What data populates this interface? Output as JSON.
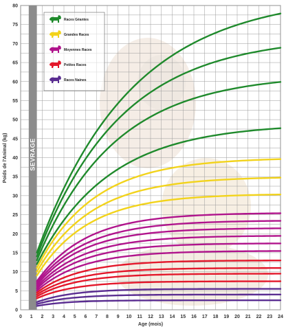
{
  "chart_data": {
    "type": "line",
    "xlabel": "Age (mois)",
    "ylabel": "Poids de l'Animal (kg)",
    "xlim": [
      0,
      24
    ],
    "ylim": [
      0,
      80
    ],
    "x_ticks": [
      "0",
      "1",
      "2",
      "3",
      "4",
      "5",
      "6",
      "7",
      "8",
      "9",
      "10",
      "11",
      "12",
      "13",
      "14",
      "15",
      "16",
      "17",
      "18",
      "19",
      "20",
      "21",
      "22",
      "23",
      "24"
    ],
    "y_ticks": [
      "0",
      "5",
      "10",
      "15",
      "20",
      "25",
      "30",
      "35",
      "40",
      "45",
      "50",
      "55",
      "60",
      "65",
      "70",
      "75",
      "80"
    ],
    "grid": true,
    "sevrage": {
      "label": "SEVRAGE",
      "x_range": [
        0.75,
        1.5
      ]
    },
    "legend_position": "top-left",
    "legend": [
      {
        "label": "Races Géantes",
        "color": "#1f8a2c",
        "icon": "dog-icon"
      },
      {
        "label": "Grandes Races",
        "color": "#f2d31b",
        "icon": "dog-icon"
      },
      {
        "label": "Moyennes Races",
        "color": "#b0148c",
        "icon": "dog-icon"
      },
      {
        "label": "Petites Races",
        "color": "#e3182b",
        "icon": "dog-icon"
      },
      {
        "label": "Races Naines",
        "color": "#5a2d91",
        "icon": "dog-icon"
      }
    ],
    "curve_model": "y = y0 + (ymax - y0) * (1 - exp(-k * (x - 1.5))), x from 1.5 to 24",
    "series": [
      {
        "group": "Races Géantes",
        "color": "#1f8a2c",
        "y0": 15,
        "ymax": 83,
        "k": 0.115
      },
      {
        "group": "Races Géantes",
        "color": "#1f8a2c",
        "y0": 14,
        "ymax": 72,
        "k": 0.13
      },
      {
        "group": "Races Géantes",
        "color": "#1f8a2c",
        "y0": 13,
        "ymax": 62,
        "k": 0.14
      },
      {
        "group": "Races Géantes",
        "color": "#1f8a2c",
        "y0": 12,
        "ymax": 49,
        "k": 0.15
      },
      {
        "group": "Grandes Races",
        "color": "#f2d31b",
        "y0": 11,
        "ymax": 40,
        "k": 0.19
      },
      {
        "group": "Grandes Races",
        "color": "#f2d31b",
        "y0": 10,
        "ymax": 35,
        "k": 0.2
      },
      {
        "group": "Grandes Races",
        "color": "#f2d31b",
        "y0": 9,
        "ymax": 30.5,
        "k": 0.21
      },
      {
        "group": "Moyennes Races",
        "color": "#b0148c",
        "y0": 7.5,
        "ymax": 25.5,
        "k": 0.22
      },
      {
        "group": "Moyennes Races",
        "color": "#b0148c",
        "y0": 7,
        "ymax": 23.5,
        "k": 0.22
      },
      {
        "group": "Moyennes Races",
        "color": "#b0148c",
        "y0": 6.5,
        "ymax": 21.5,
        "k": 0.23
      },
      {
        "group": "Moyennes Races",
        "color": "#b0148c",
        "y0": 6,
        "ymax": 19.5,
        "k": 0.23
      },
      {
        "group": "Moyennes Races",
        "color": "#b0148c",
        "y0": 5.5,
        "ymax": 17.5,
        "k": 0.24
      },
      {
        "group": "Moyennes Races",
        "color": "#b0148c",
        "y0": 5,
        "ymax": 15.5,
        "k": 0.24
      },
      {
        "group": "Petites Races",
        "color": "#e3182b",
        "y0": 4.5,
        "ymax": 13,
        "k": 0.25
      },
      {
        "group": "Petites Races",
        "color": "#e3182b",
        "y0": 4,
        "ymax": 11,
        "k": 0.26
      },
      {
        "group": "Petites Races",
        "color": "#e3182b",
        "y0": 3.5,
        "ymax": 9.5,
        "k": 0.27
      },
      {
        "group": "Petites Races",
        "color": "#e3182b",
        "y0": 3,
        "ymax": 7.5,
        "k": 0.28
      },
      {
        "group": "Races Naines",
        "color": "#5a2d91",
        "y0": 2,
        "ymax": 5.5,
        "k": 0.3
      },
      {
        "group": "Races Naines",
        "color": "#5a2d91",
        "y0": 1.5,
        "ymax": 4,
        "k": 0.32
      },
      {
        "group": "Races Naines",
        "color": "#5a2d91",
        "y0": 1,
        "ymax": 2.5,
        "k": 0.35
      }
    ]
  }
}
